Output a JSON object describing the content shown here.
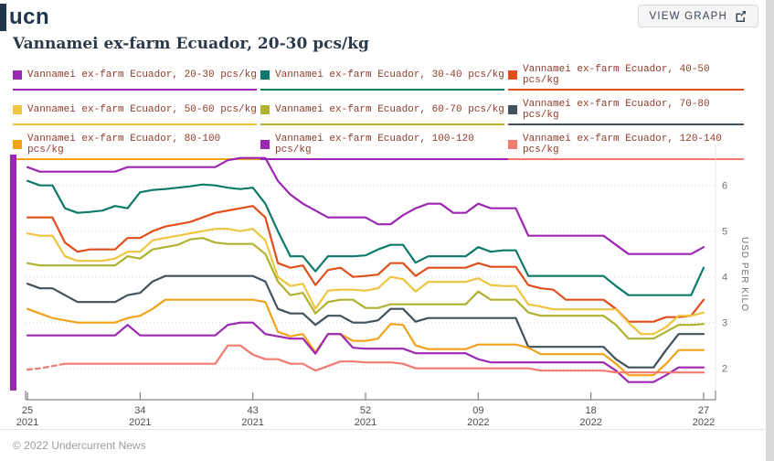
{
  "header": {
    "logo_text": "ucn",
    "view_graph_label": "VIEW GRAPH"
  },
  "title": "Vannamei ex-farm Ecuador, 20-30 pcs/kg",
  "footer": {
    "copyright": "© 2022 Undercurrent News"
  },
  "chart_data": {
    "type": "line",
    "title": "Vannamei ex-farm Ecuador, 20-30 pcs/kg",
    "ylabel": "USD PER KILO",
    "ylim": [
      1.4,
      6.9
    ],
    "yticks": [
      2,
      3,
      4,
      5,
      6
    ],
    "grid": "horizontal dotted",
    "legend_position": "top",
    "left_accent_bar_color": "#9c27b0",
    "x_unit": "week index from week 25 of 2021 (one point per week)",
    "x_ticks": [
      {
        "index": 0,
        "week": "25",
        "year": "2021"
      },
      {
        "index": 9,
        "week": "34",
        "year": "2021"
      },
      {
        "index": 18,
        "week": "43",
        "year": "2021"
      },
      {
        "index": 27,
        "week": "52",
        "year": "2021"
      },
      {
        "index": 36,
        "week": "09",
        "year": "2022"
      },
      {
        "index": 45,
        "week": "18",
        "year": "2022"
      },
      {
        "index": 54,
        "week": "27",
        "year": "2022"
      }
    ],
    "series": [
      {
        "name": "Vannamei ex-farm Ecuador, 20-30 pcs/kg",
        "size": "20-30",
        "color": "#9c27b0",
        "values": [
          6.4,
          6.3,
          6.3,
          6.3,
          6.3,
          6.3,
          6.3,
          6.3,
          6.4,
          6.4,
          6.4,
          6.4,
          6.4,
          6.4,
          6.4,
          6.4,
          6.55,
          6.6,
          6.6,
          6.6,
          6.1,
          5.8,
          5.6,
          5.45,
          5.3,
          5.3,
          5.3,
          5.3,
          5.15,
          5.15,
          5.35,
          5.5,
          5.6,
          5.6,
          5.4,
          5.4,
          5.6,
          5.5,
          5.5,
          5.5,
          4.9,
          4.9,
          4.9,
          4.9,
          4.9,
          4.9,
          4.9,
          4.7,
          4.5,
          4.5,
          4.5,
          4.5,
          4.5,
          4.5,
          4.65
        ]
      },
      {
        "name": "Vannamei ex-farm Ecuador, 30-40 pcs/kg",
        "size": "30-40",
        "color": "#0c7a6a",
        "values": [
          6.1,
          6.0,
          6.0,
          5.5,
          5.4,
          5.42,
          5.45,
          5.55,
          5.5,
          5.85,
          5.9,
          5.92,
          5.95,
          5.98,
          6.02,
          6.0,
          5.95,
          5.92,
          5.95,
          5.6,
          5.0,
          4.45,
          4.45,
          4.12,
          4.45,
          4.45,
          4.45,
          4.47,
          4.6,
          4.7,
          4.7,
          4.31,
          4.45,
          4.45,
          4.45,
          4.45,
          4.65,
          4.55,
          4.58,
          4.58,
          4.02,
          4.02,
          4.02,
          4.02,
          4.02,
          4.02,
          4.02,
          3.8,
          3.6,
          3.6,
          3.6,
          3.6,
          3.6,
          3.6,
          4.2
        ]
      },
      {
        "name": "Vannamei ex-farm Ecuador, 40-50 pcs/kg",
        "size": "40-50",
        "color": "#e04e1c",
        "values": [
          5.3,
          5.3,
          5.3,
          4.75,
          4.55,
          4.6,
          4.6,
          4.6,
          4.85,
          4.85,
          5.0,
          5.1,
          5.15,
          5.2,
          5.3,
          5.4,
          5.45,
          5.5,
          5.55,
          5.3,
          4.3,
          4.2,
          4.25,
          3.82,
          4.15,
          4.2,
          4.0,
          4.02,
          4.05,
          4.3,
          4.3,
          4.02,
          4.2,
          4.2,
          4.2,
          4.2,
          4.3,
          4.22,
          4.22,
          4.22,
          3.82,
          3.75,
          3.72,
          3.5,
          3.5,
          3.5,
          3.5,
          3.3,
          3.02,
          3.02,
          3.02,
          3.12,
          3.12,
          3.15,
          3.5
        ]
      },
      {
        "name": "Vannamei ex-farm Ecuador, 50-60 pcs/kg",
        "size": "50-60",
        "color": "#eec53f",
        "values": [
          4.95,
          4.9,
          4.9,
          4.45,
          4.35,
          4.35,
          4.35,
          4.4,
          4.55,
          4.55,
          4.8,
          4.85,
          4.9,
          4.95,
          5.0,
          5.05,
          5.05,
          5.0,
          5.05,
          4.8,
          4.0,
          3.8,
          3.85,
          3.3,
          3.7,
          3.72,
          3.72,
          3.7,
          3.75,
          4.0,
          3.95,
          3.68,
          3.89,
          3.89,
          3.89,
          3.89,
          3.97,
          3.82,
          3.8,
          3.8,
          3.4,
          3.35,
          3.29,
          3.29,
          3.29,
          3.29,
          3.29,
          3.29,
          3.0,
          2.75,
          2.75,
          2.9,
          3.15,
          3.15,
          3.22
        ]
      },
      {
        "name": "Vannamei ex-farm Ecuador, 60-70 pcs/kg",
        "size": "60-70",
        "color": "#b0b12f",
        "values": [
          4.3,
          4.25,
          4.25,
          4.25,
          4.25,
          4.25,
          4.25,
          4.25,
          4.45,
          4.4,
          4.6,
          4.65,
          4.7,
          4.82,
          4.85,
          4.75,
          4.72,
          4.72,
          4.72,
          4.5,
          3.9,
          3.6,
          3.65,
          3.2,
          3.45,
          3.5,
          3.5,
          3.32,
          3.32,
          3.4,
          3.4,
          3.4,
          3.4,
          3.4,
          3.4,
          3.4,
          3.68,
          3.5,
          3.5,
          3.5,
          3.22,
          3.15,
          3.15,
          3.15,
          3.15,
          3.15,
          3.15,
          2.95,
          2.65,
          2.65,
          2.65,
          2.8,
          2.95,
          2.95,
          2.97
        ]
      },
      {
        "name": "Vannamei ex-farm Ecuador, 70-80 pcs/kg",
        "size": "70-80",
        "color": "#42525c",
        "values": [
          3.85,
          3.75,
          3.75,
          3.6,
          3.45,
          3.45,
          3.45,
          3.45,
          3.6,
          3.65,
          3.9,
          4.02,
          4.02,
          4.02,
          4.02,
          4.02,
          4.02,
          4.02,
          4.02,
          3.9,
          3.3,
          3.2,
          3.2,
          2.95,
          3.15,
          3.15,
          3.0,
          3.0,
          3.05,
          3.3,
          3.3,
          3.02,
          3.1,
          3.1,
          3.1,
          3.1,
          3.1,
          3.1,
          3.1,
          3.1,
          2.47,
          2.47,
          2.47,
          2.47,
          2.47,
          2.47,
          2.47,
          2.2,
          2.02,
          2.02,
          2.02,
          2.4,
          2.75,
          2.75,
          2.75
        ]
      },
      {
        "name": "Vannamei ex-farm Ecuador, 80-100 pcs/kg",
        "size": "80-100",
        "color": "#f3a21b",
        "values": [
          3.3,
          3.2,
          3.1,
          3.05,
          3.0,
          3.0,
          3.0,
          3.0,
          3.1,
          3.15,
          3.3,
          3.5,
          3.5,
          3.5,
          3.5,
          3.5,
          3.5,
          3.5,
          3.5,
          3.45,
          2.8,
          2.7,
          2.75,
          2.35,
          2.75,
          2.75,
          2.6,
          2.6,
          2.65,
          2.97,
          2.95,
          2.5,
          2.42,
          2.42,
          2.42,
          2.42,
          2.52,
          2.52,
          2.52,
          2.52,
          2.45,
          2.31,
          2.31,
          2.31,
          2.31,
          2.31,
          2.31,
          2.1,
          1.85,
          1.85,
          1.85,
          2.1,
          2.4,
          2.4,
          2.4
        ]
      },
      {
        "name": "Vannamei ex-farm Ecuador, 100-120 pcs/kg",
        "size": "100-120",
        "color": "#9c27b0",
        "values": [
          2.72,
          2.72,
          2.72,
          2.72,
          2.72,
          2.72,
          2.72,
          2.72,
          2.95,
          2.72,
          2.72,
          2.72,
          2.72,
          2.72,
          2.72,
          2.72,
          2.95,
          3.0,
          3.0,
          2.75,
          2.7,
          2.65,
          2.65,
          2.32,
          2.75,
          2.75,
          2.45,
          2.43,
          2.43,
          2.43,
          2.43,
          2.33,
          2.33,
          2.33,
          2.33,
          2.33,
          2.2,
          2.13,
          2.13,
          2.13,
          2.13,
          2.13,
          2.13,
          2.13,
          2.13,
          2.13,
          2.13,
          1.95,
          1.7,
          1.7,
          1.7,
          1.85,
          2.02,
          2.02,
          2.02
        ]
      },
      {
        "name": "Vannamei ex-farm Ecuador, 120-140 pcs/kg",
        "size": "120-140",
        "color": "#f37a6f",
        "dash_until_index": 3,
        "values": [
          1.97,
          2.0,
          2.05,
          2.1,
          2.1,
          2.1,
          2.1,
          2.1,
          2.1,
          2.1,
          2.1,
          2.1,
          2.1,
          2.1,
          2.1,
          2.1,
          2.5,
          2.5,
          2.3,
          2.2,
          2.2,
          2.1,
          2.1,
          1.95,
          2.05,
          2.15,
          2.15,
          2.13,
          2.13,
          2.13,
          2.1,
          2.0,
          2.0,
          2.0,
          2.0,
          2.0,
          2.0,
          2.0,
          2.0,
          2.0,
          2.0,
          1.95,
          1.95,
          1.95,
          1.95,
          1.95,
          1.95,
          1.91,
          1.91,
          1.91,
          1.91,
          1.91,
          1.91,
          1.91,
          1.91
        ]
      }
    ]
  }
}
